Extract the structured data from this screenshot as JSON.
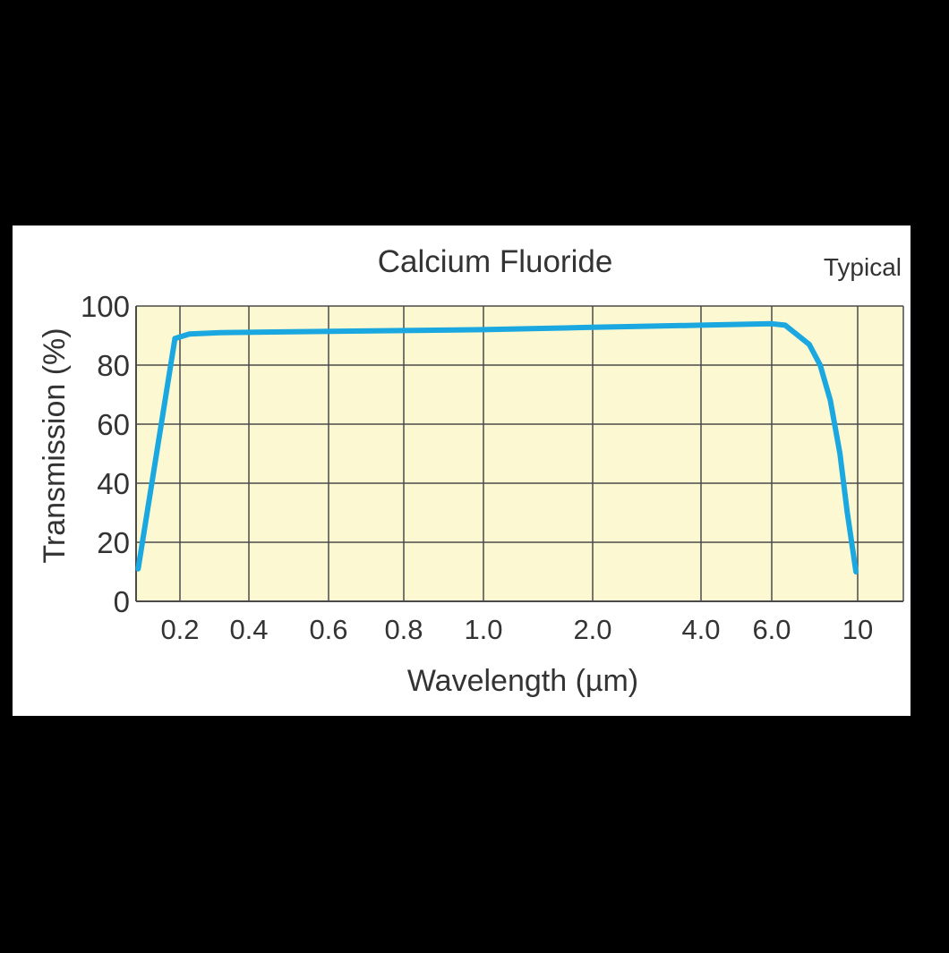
{
  "chart_data": {
    "type": "line",
    "title": "Calcium Fluoride",
    "subtitle": "Typical",
    "xlabel": "Wavelength (µm)",
    "ylabel": "Transmission (%)",
    "xscale": "log",
    "ylim": [
      0,
      100
    ],
    "y_ticks": [
      0,
      20,
      40,
      60,
      80,
      100
    ],
    "x_ticks": [
      {
        "value": 0.2,
        "label": "0.2"
      },
      {
        "value": 0.4,
        "label": "0.4"
      },
      {
        "value": 0.6,
        "label": "0.6"
      },
      {
        "value": 0.8,
        "label": "0.8"
      },
      {
        "value": 1.0,
        "label": "1.0"
      },
      {
        "value": 2.0,
        "label": "2.0"
      },
      {
        "value": 4.0,
        "label": "4.0"
      },
      {
        "value": 6.0,
        "label": "6.0"
      },
      {
        "value": 10,
        "label": "10"
      }
    ],
    "grid": true,
    "colors": {
      "plot_background": "#fcf9d2",
      "line": "#1ba8e0",
      "grid": "#4a4a4a",
      "text": "#333333"
    },
    "series": [
      {
        "x": [
          0.13,
          0.19,
          0.22,
          0.3,
          0.5,
          1.0,
          2.0,
          4.0,
          6.0,
          6.5,
          7.5,
          8.0,
          8.5,
          9.0,
          9.4,
          9.9
        ],
        "y": [
          11,
          89,
          90.5,
          91,
          91.3,
          92,
          92.8,
          93.5,
          94,
          93.5,
          87,
          80,
          68,
          50,
          30,
          10
        ]
      }
    ]
  }
}
